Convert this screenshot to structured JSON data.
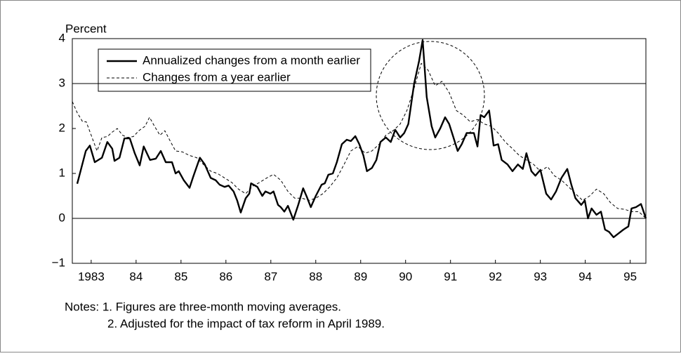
{
  "chart_data": {
    "type": "line",
    "y_label": "Percent",
    "xlim": [
      1983.08,
      1995.85
    ],
    "xticks": [
      {
        "value": 1983.5,
        "label": "1983"
      },
      {
        "value": 1984.5,
        "label": "84"
      },
      {
        "value": 1985.5,
        "label": "85"
      },
      {
        "value": 1986.5,
        "label": "86"
      },
      {
        "value": 1987.5,
        "label": "87"
      },
      {
        "value": 1988.5,
        "label": "88"
      },
      {
        "value": 1989.5,
        "label": "89"
      },
      {
        "value": 1990.5,
        "label": "90"
      },
      {
        "value": 1991.5,
        "label": "91"
      },
      {
        "value": 1992.5,
        "label": "92"
      },
      {
        "value": 1993.5,
        "label": "93"
      },
      {
        "value": 1994.5,
        "label": "94"
      },
      {
        "value": 1995.5,
        "label": "95"
      }
    ],
    "ylim": [
      -1,
      4
    ],
    "yticks": [
      {
        "value": -1,
        "label": "−1"
      },
      0,
      1,
      2,
      3,
      4
    ],
    "reference_lines": [
      0,
      3
    ],
    "legend": "upper left",
    "series": [
      {
        "name": "Annualized changes from a month earlier",
        "color": "#000000",
        "style": "solid",
        "x": [
          1983.19,
          1983.38,
          1983.47,
          1983.58,
          1983.74,
          1983.86,
          1983.97,
          1984.02,
          1984.13,
          1984.24,
          1984.36,
          1984.47,
          1984.58,
          1984.67,
          1984.81,
          1984.94,
          1985.05,
          1985.16,
          1985.3,
          1985.38,
          1985.45,
          1985.56,
          1985.69,
          1985.78,
          1985.92,
          1986.03,
          1986.16,
          1986.27,
          1986.36,
          1986.47,
          1986.56,
          1986.67,
          1986.75,
          1986.83,
          1986.94,
          1987.02,
          1987.06,
          1987.2,
          1987.31,
          1987.38,
          1987.49,
          1987.56,
          1987.66,
          1987.72,
          1987.8,
          1987.88,
          1988.0,
          1988.11,
          1988.22,
          1988.3,
          1988.39,
          1988.5,
          1988.63,
          1988.7,
          1988.78,
          1988.88,
          1988.97,
          1989.08,
          1989.19,
          1989.28,
          1989.38,
          1989.47,
          1989.56,
          1989.64,
          1989.75,
          1989.85,
          1989.94,
          1990.06,
          1990.17,
          1990.27,
          1990.38,
          1990.47,
          1990.56,
          1990.69,
          1990.8,
          1990.88,
          1990.97,
          1991.08,
          1991.16,
          1991.27,
          1991.38,
          1991.47,
          1991.55,
          1991.66,
          1991.75,
          1991.86,
          1992.02,
          1992.1,
          1992.17,
          1992.25,
          1992.36,
          1992.46,
          1992.56,
          1992.64,
          1992.77,
          1992.88,
          1993.0,
          1993.11,
          1993.19,
          1993.3,
          1993.39,
          1993.5,
          1993.63,
          1993.74,
          1993.85,
          1993.97,
          1994.1,
          1994.19,
          1994.28,
          1994.41,
          1994.49,
          1994.56,
          1994.64,
          1994.75,
          1994.85,
          1994.94,
          1995.03,
          1995.13,
          1995.22,
          1995.35,
          1995.46,
          1995.53,
          1995.63,
          1995.74,
          1995.85
        ],
        "values": [
          0.77,
          1.5,
          1.62,
          1.25,
          1.35,
          1.7,
          1.55,
          1.28,
          1.35,
          1.78,
          1.78,
          1.45,
          1.18,
          1.6,
          1.3,
          1.33,
          1.5,
          1.25,
          1.25,
          1.0,
          1.05,
          0.85,
          0.68,
          0.95,
          1.35,
          1.2,
          0.9,
          0.85,
          0.75,
          0.7,
          0.73,
          0.6,
          0.4,
          0.13,
          0.45,
          0.55,
          0.78,
          0.7,
          0.5,
          0.6,
          0.55,
          0.6,
          0.3,
          0.25,
          0.15,
          0.28,
          -0.03,
          0.3,
          0.67,
          0.48,
          0.25,
          0.5,
          0.75,
          0.78,
          0.97,
          1.0,
          1.25,
          1.65,
          1.75,
          1.72,
          1.83,
          1.65,
          1.4,
          1.05,
          1.12,
          1.3,
          1.7,
          1.8,
          1.7,
          1.97,
          1.8,
          1.9,
          2.1,
          3.0,
          3.5,
          3.97,
          2.7,
          2.05,
          1.8,
          2.0,
          2.25,
          2.1,
          1.85,
          1.5,
          1.65,
          1.9,
          1.9,
          1.6,
          2.3,
          2.25,
          2.4,
          1.62,
          1.65,
          1.3,
          1.2,
          1.05,
          1.2,
          1.1,
          1.45,
          1.05,
          0.95,
          1.08,
          0.55,
          0.42,
          0.6,
          0.9,
          1.1,
          0.75,
          0.45,
          0.3,
          0.4,
          0.0,
          0.22,
          0.08,
          0.15,
          -0.25,
          -0.3,
          -0.42,
          -0.35,
          -0.25,
          -0.18,
          0.22,
          0.25,
          0.32,
          0.0
        ]
      },
      {
        "name": "Changes from a year earlier",
        "color": "#000000",
        "style": "dashed",
        "x": [
          1983.08,
          1983.19,
          1983.31,
          1983.39,
          1983.5,
          1983.63,
          1983.74,
          1983.86,
          1983.97,
          1984.08,
          1984.2,
          1984.31,
          1984.44,
          1984.56,
          1984.7,
          1984.8,
          1984.91,
          1985.03,
          1985.14,
          1985.27,
          1985.38,
          1985.53,
          1985.69,
          1985.85,
          1986.0,
          1986.16,
          1986.31,
          1986.47,
          1986.63,
          1986.78,
          1986.94,
          1987.1,
          1987.25,
          1987.41,
          1987.56,
          1987.72,
          1987.88,
          1988.03,
          1988.19,
          1988.35,
          1988.5,
          1988.66,
          1988.81,
          1988.97,
          1989.13,
          1989.28,
          1989.44,
          1989.6,
          1989.75,
          1989.91,
          1990.06,
          1990.22,
          1990.38,
          1990.53,
          1990.69,
          1990.85,
          1991.0,
          1991.16,
          1991.31,
          1991.47,
          1991.63,
          1991.78,
          1991.94,
          1992.1,
          1992.25,
          1992.41,
          1992.56,
          1992.72,
          1992.88,
          1993.03,
          1993.19,
          1993.35,
          1993.5,
          1993.66,
          1993.81,
          1993.97,
          1994.13,
          1994.28,
          1994.44,
          1994.6,
          1994.75,
          1994.91,
          1995.06,
          1995.22,
          1995.38,
          1995.53,
          1995.69,
          1995.85
        ],
        "values": [
          2.6,
          2.35,
          2.15,
          2.15,
          1.85,
          1.5,
          1.8,
          1.82,
          1.92,
          2.0,
          1.85,
          1.8,
          1.82,
          1.95,
          2.05,
          2.25,
          2.05,
          1.85,
          1.95,
          1.7,
          1.5,
          1.48,
          1.4,
          1.35,
          1.2,
          1.05,
          1.0,
          0.9,
          0.8,
          0.65,
          0.55,
          0.72,
          0.8,
          0.9,
          0.98,
          0.85,
          0.6,
          0.45,
          0.45,
          0.4,
          0.45,
          0.55,
          0.7,
          0.9,
          1.2,
          1.5,
          1.6,
          1.45,
          1.5,
          1.65,
          1.85,
          1.95,
          2.1,
          2.4,
          2.9,
          3.45,
          3.3,
          2.95,
          3.05,
          2.8,
          2.4,
          2.3,
          2.15,
          2.2,
          2.1,
          2.05,
          1.9,
          1.7,
          1.55,
          1.4,
          1.3,
          1.2,
          1.05,
          1.15,
          0.95,
          0.85,
          0.7,
          0.55,
          0.4,
          0.5,
          0.65,
          0.55,
          0.35,
          0.22,
          0.2,
          0.15,
          0.15,
          0.0
        ]
      }
    ],
    "notes": [
      "Notes: 1. Figures are three-month moving averages.",
      "2. Adjusted for the impact of tax reform in April 1989."
    ]
  }
}
